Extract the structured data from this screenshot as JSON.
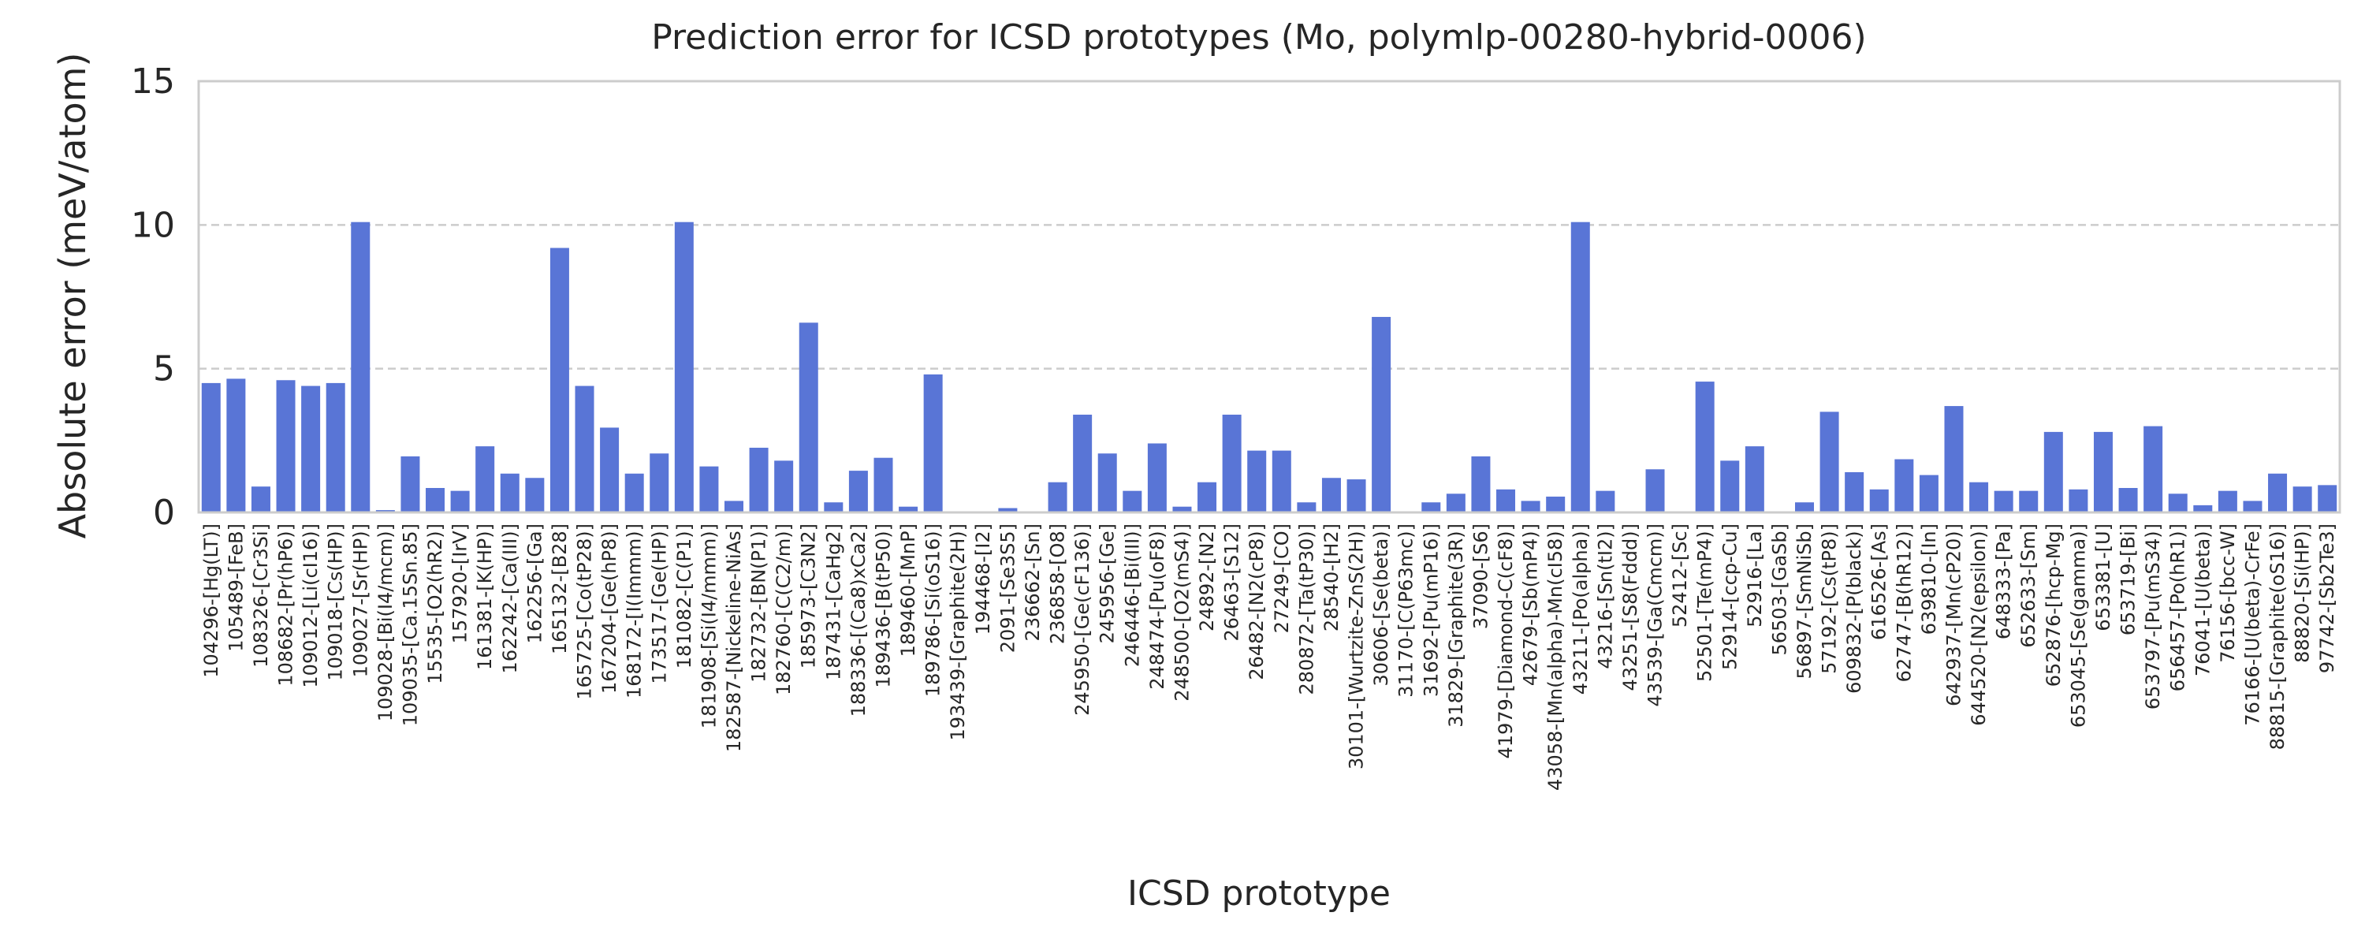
{
  "chart_data": {
    "type": "bar",
    "title": "Prediction error for ICSD prototypes (Mo, polymlp-00280-hybrid-0006)",
    "xlabel": "ICSD prototype",
    "ylabel": "Absolute error (meV/atom)",
    "ylim": [
      0,
      15
    ],
    "yticks": [
      0,
      5,
      10,
      15
    ],
    "grid": true,
    "bar_color": "#5975d6",
    "categories": [
      "104296-[Hg(LT)]",
      "105489-[FeB]",
      "108326-[Cr3Si]",
      "108682-[Pr(hP6)]",
      "109012-[Li(cI16)]",
      "109018-[Cs(HP)]",
      "109027-[Sr(HP)]",
      "109028-[Bi(I4/mcm)]",
      "109035-[Ca.15Sn.85]",
      "15535-[O2(hR2)]",
      "157920-[IrV]",
      "161381-[K(HP)]",
      "162242-[Ca(III)]",
      "162256-[Ga]",
      "165132-[B28]",
      "165725-[Co(tP28)]",
      "167204-[Ge(hP8)]",
      "168172-[I(Immm)]",
      "173517-[Ge(HP)]",
      "181082-[C(P1)]",
      "181908-[Si(I4/mmm)]",
      "182587-[Nickeline-NiAs]",
      "182732-[BN(P1)]",
      "182760-[C(C2/m)]",
      "185973-[C3N2]",
      "187431-[CaHg2]",
      "188336-[(Ca8)xCa2]",
      "189436-[B(tP50)]",
      "189460-[MnP]",
      "189786-[Si(oS16)]",
      "193439-[Graphite(2H)]",
      "194468-[I2]",
      "2091-[Se3S5]",
      "236662-[Sn]",
      "236858-[O8]",
      "245950-[Ge(cF136)]",
      "245956-[Ge]",
      "246446-[Bi(III)]",
      "248474-[Pu(oF8)]",
      "248500-[O2(mS4)]",
      "24892-[N2]",
      "26463-[S12]",
      "26482-[N2(cP8)]",
      "27249-[CO]",
      "280872-[Ta(tP30)]",
      "28540-[H2]",
      "30101-[Wurtzite-ZnS(2H)]",
      "30606-[Se(beta)]",
      "31170-[C(P63mc)]",
      "31692-[Pu(mP16)]",
      "31829-[Graphite(3R)]",
      "37090-[S6]",
      "41979-[Diamond-C(cF8)]",
      "42679-[Sb(mP4)]",
      "43058-[Mn(alpha)-Mn(cI58)]",
      "43211-[Po(alpha)]",
      "43216-[Sn(tI2)]",
      "43251-[S8(Fddd)]",
      "43539-[Ga(Cmcm)]",
      "52412-[Sc]",
      "52501-[Te(mP4)]",
      "52914-[ccp-Cu]",
      "52916-[La]",
      "56503-[GaSb]",
      "56897-[SmNiSb]",
      "57192-[Cs(tP8)]",
      "609832-[P(black)]",
      "616526-[As]",
      "62747-[B(hR12)]",
      "639810-[In]",
      "642937-[Mn(cP20)]",
      "644520-[N2(epsilon)]",
      "648333-[Pa]",
      "652633-[Sm]",
      "652876-[hcp-Mg]",
      "653045-[Se(gamma)]",
      "653381-[U]",
      "653719-[Bi]",
      "653797-[Pu(mS34)]",
      "656457-[Po(hR1)]",
      "76041-[U(beta)]",
      "76156-[bcc-W]",
      "76166-[U(beta)-CrFe]",
      "88815-[Graphite(oS16)]",
      "88820-[Si(HP)]",
      "97742-[Sb2Te3]"
    ],
    "values": [
      4.5,
      4.65,
      0.9,
      4.6,
      4.4,
      4.5,
      10.1,
      0.08,
      1.95,
      0.85,
      0.75,
      2.3,
      1.35,
      1.2,
      9.2,
      4.4,
      2.95,
      1.35,
      2.05,
      10.1,
      1.6,
      0.4,
      2.25,
      1.8,
      6.6,
      0.35,
      1.45,
      1.9,
      0.2,
      4.8,
      0.0,
      0.0,
      0.15,
      0.0,
      1.05,
      3.4,
      2.05,
      0.75,
      2.4,
      0.2,
      1.05,
      3.4,
      2.15,
      2.15,
      0.35,
      1.2,
      1.15,
      6.8,
      0.0,
      0.35,
      0.65,
      1.95,
      0.8,
      0.4,
      0.55,
      10.1,
      0.75,
      0.0,
      1.5,
      0.0,
      4.55,
      1.8,
      2.3,
      0.0,
      0.35,
      3.5,
      1.4,
      0.8,
      1.85,
      1.3,
      3.7,
      1.05,
      0.75,
      0.75,
      2.8,
      0.8,
      2.8,
      0.85,
      3.0,
      0.65,
      0.25,
      0.75,
      0.4,
      1.35,
      0.9,
      0.95
    ]
  }
}
